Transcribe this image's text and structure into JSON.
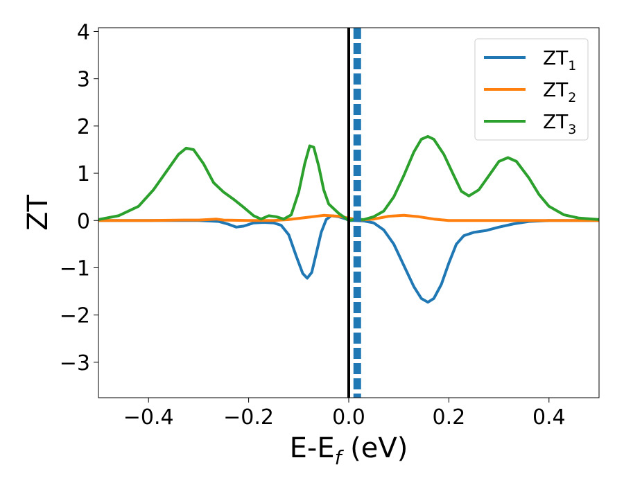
{
  "chart_data": {
    "type": "line",
    "title": "",
    "xlabel": {
      "main": "E-E",
      "sub": "f",
      "suffix": " (eV)"
    },
    "ylabel": "ZT",
    "xlim": [
      -0.5,
      0.5
    ],
    "ylim": [
      -3.75,
      4.08
    ],
    "xticks": [
      -0.4,
      -0.2,
      0.0,
      0.2,
      0.4
    ],
    "xtick_labels": [
      "−0.4",
      "−0.2",
      "0.0",
      "0.2",
      "0.4"
    ],
    "yticks": [
      -3,
      -2,
      -1,
      0,
      1,
      2,
      3,
      4
    ],
    "ytick_labels": [
      "−3",
      "−2",
      "−1",
      "0",
      "1",
      "2",
      "3",
      "4"
    ],
    "grid": false,
    "legend": {
      "placement": "top-right"
    },
    "vlines": [
      {
        "x": 0.0,
        "style": "solid",
        "color": "#000000"
      },
      {
        "x": 0.017,
        "style": "dashed",
        "color": "#1f77b4"
      }
    ],
    "series": [
      {
        "name": "ZT",
        "sub": "1",
        "color": "#1f77b4",
        "points": [
          [
            -0.5,
            0.0
          ],
          [
            -0.4,
            0.0
          ],
          [
            -0.3,
            0.0
          ],
          [
            -0.28,
            -0.01
          ],
          [
            -0.26,
            -0.02
          ],
          [
            -0.24,
            -0.08
          ],
          [
            -0.225,
            -0.14
          ],
          [
            -0.21,
            -0.12
          ],
          [
            -0.19,
            -0.05
          ],
          [
            -0.17,
            -0.04
          ],
          [
            -0.15,
            -0.05
          ],
          [
            -0.135,
            -0.1
          ],
          [
            -0.12,
            -0.3
          ],
          [
            -0.105,
            -0.75
          ],
          [
            -0.092,
            -1.12
          ],
          [
            -0.083,
            -1.22
          ],
          [
            -0.074,
            -1.1
          ],
          [
            -0.065,
            -0.7
          ],
          [
            -0.055,
            -0.25
          ],
          [
            -0.045,
            0.02
          ],
          [
            -0.035,
            0.1
          ],
          [
            -0.02,
            0.08
          ],
          [
            -0.005,
            0.03
          ],
          [
            0.0,
            0.0
          ],
          [
            0.01,
            0.0
          ],
          [
            0.03,
            -0.01
          ],
          [
            0.05,
            -0.05
          ],
          [
            0.07,
            -0.2
          ],
          [
            0.09,
            -0.5
          ],
          [
            0.11,
            -0.95
          ],
          [
            0.13,
            -1.4
          ],
          [
            0.145,
            -1.65
          ],
          [
            0.158,
            -1.73
          ],
          [
            0.17,
            -1.65
          ],
          [
            0.185,
            -1.35
          ],
          [
            0.2,
            -0.9
          ],
          [
            0.215,
            -0.5
          ],
          [
            0.23,
            -0.32
          ],
          [
            0.25,
            -0.25
          ],
          [
            0.275,
            -0.21
          ],
          [
            0.3,
            -0.14
          ],
          [
            0.33,
            -0.07
          ],
          [
            0.36,
            -0.02
          ],
          [
            0.4,
            0.0
          ],
          [
            0.5,
            0.0
          ]
        ]
      },
      {
        "name": "ZT",
        "sub": "2",
        "color": "#ff7f0e",
        "points": [
          [
            -0.5,
            0.0
          ],
          [
            -0.4,
            0.0
          ],
          [
            -0.33,
            0.01
          ],
          [
            -0.3,
            0.01
          ],
          [
            -0.28,
            0.02
          ],
          [
            -0.265,
            0.03
          ],
          [
            -0.25,
            0.01
          ],
          [
            -0.2,
            0.0
          ],
          [
            -0.15,
            0.0
          ],
          [
            -0.12,
            0.02
          ],
          [
            -0.08,
            0.07
          ],
          [
            -0.05,
            0.11
          ],
          [
            -0.02,
            0.09
          ],
          [
            0.0,
            0.05
          ],
          [
            0.02,
            0.01
          ],
          [
            0.05,
            0.03
          ],
          [
            0.08,
            0.09
          ],
          [
            0.11,
            0.11
          ],
          [
            0.14,
            0.08
          ],
          [
            0.17,
            0.03
          ],
          [
            0.2,
            0.0
          ],
          [
            0.3,
            0.0
          ],
          [
            0.5,
            0.0
          ]
        ]
      },
      {
        "name": "ZT",
        "sub": "3",
        "color": "#2ca02c",
        "points": [
          [
            -0.5,
            0.02
          ],
          [
            -0.46,
            0.1
          ],
          [
            -0.42,
            0.3
          ],
          [
            -0.39,
            0.65
          ],
          [
            -0.36,
            1.1
          ],
          [
            -0.34,
            1.4
          ],
          [
            -0.325,
            1.53
          ],
          [
            -0.31,
            1.5
          ],
          [
            -0.29,
            1.2
          ],
          [
            -0.27,
            0.8
          ],
          [
            -0.25,
            0.6
          ],
          [
            -0.23,
            0.45
          ],
          [
            -0.21,
            0.28
          ],
          [
            -0.19,
            0.1
          ],
          [
            -0.175,
            0.03
          ],
          [
            -0.16,
            0.1
          ],
          [
            -0.145,
            0.08
          ],
          [
            -0.13,
            0.03
          ],
          [
            -0.115,
            0.12
          ],
          [
            -0.1,
            0.6
          ],
          [
            -0.088,
            1.2
          ],
          [
            -0.078,
            1.58
          ],
          [
            -0.07,
            1.55
          ],
          [
            -0.06,
            1.15
          ],
          [
            -0.05,
            0.65
          ],
          [
            -0.04,
            0.35
          ],
          [
            -0.02,
            0.15
          ],
          [
            0.0,
            0.0
          ],
          [
            0.01,
            0.02
          ],
          [
            0.03,
            0.02
          ],
          [
            0.05,
            0.08
          ],
          [
            0.07,
            0.2
          ],
          [
            0.09,
            0.5
          ],
          [
            0.11,
            0.95
          ],
          [
            0.13,
            1.45
          ],
          [
            0.145,
            1.72
          ],
          [
            0.158,
            1.78
          ],
          [
            0.17,
            1.72
          ],
          [
            0.19,
            1.4
          ],
          [
            0.21,
            0.95
          ],
          [
            0.225,
            0.62
          ],
          [
            0.24,
            0.52
          ],
          [
            0.26,
            0.65
          ],
          [
            0.28,
            0.95
          ],
          [
            0.3,
            1.25
          ],
          [
            0.318,
            1.33
          ],
          [
            0.335,
            1.25
          ],
          [
            0.36,
            0.9
          ],
          [
            0.38,
            0.55
          ],
          [
            0.4,
            0.3
          ],
          [
            0.43,
            0.12
          ],
          [
            0.46,
            0.05
          ],
          [
            0.5,
            0.02
          ]
        ]
      }
    ]
  }
}
